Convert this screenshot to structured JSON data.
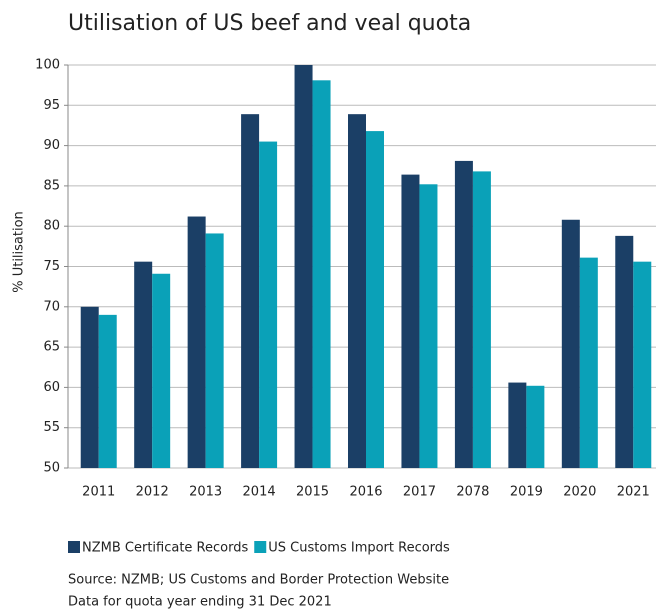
{
  "chart_data": {
    "type": "bar",
    "title": "Utilisation of US beef and veal quota",
    "y_label": "% Utilisation",
    "categories": [
      "2011",
      "2012",
      "2013",
      "2014",
      "2015",
      "2016",
      "2017",
      "2078",
      "2019",
      "2020",
      "2021"
    ],
    "series": [
      {
        "name": "NZMB Certificate Records",
        "color": "#1b3f66",
        "values": [
          70,
          75.6,
          81.2,
          93.9,
          100,
          93.9,
          86.4,
          88.1,
          60.6,
          80.8,
          78.8
        ]
      },
      {
        "name": "US Customs Import Records",
        "color": "#0aa1b8",
        "values": [
          69,
          74.1,
          79.1,
          90.5,
          98.1,
          91.8,
          85.2,
          86.8,
          60.2,
          76.1,
          75.6
        ]
      }
    ],
    "ylim": [
      50,
      100
    ],
    "yticks": [
      50,
      55,
      60,
      65,
      70,
      75,
      80,
      85,
      90,
      95,
      100
    ],
    "grid": true,
    "notes": [
      "Source: NZMB; US Customs and Border Protection Website",
      "Data for quota year ending 31 Dec 2021"
    ]
  }
}
